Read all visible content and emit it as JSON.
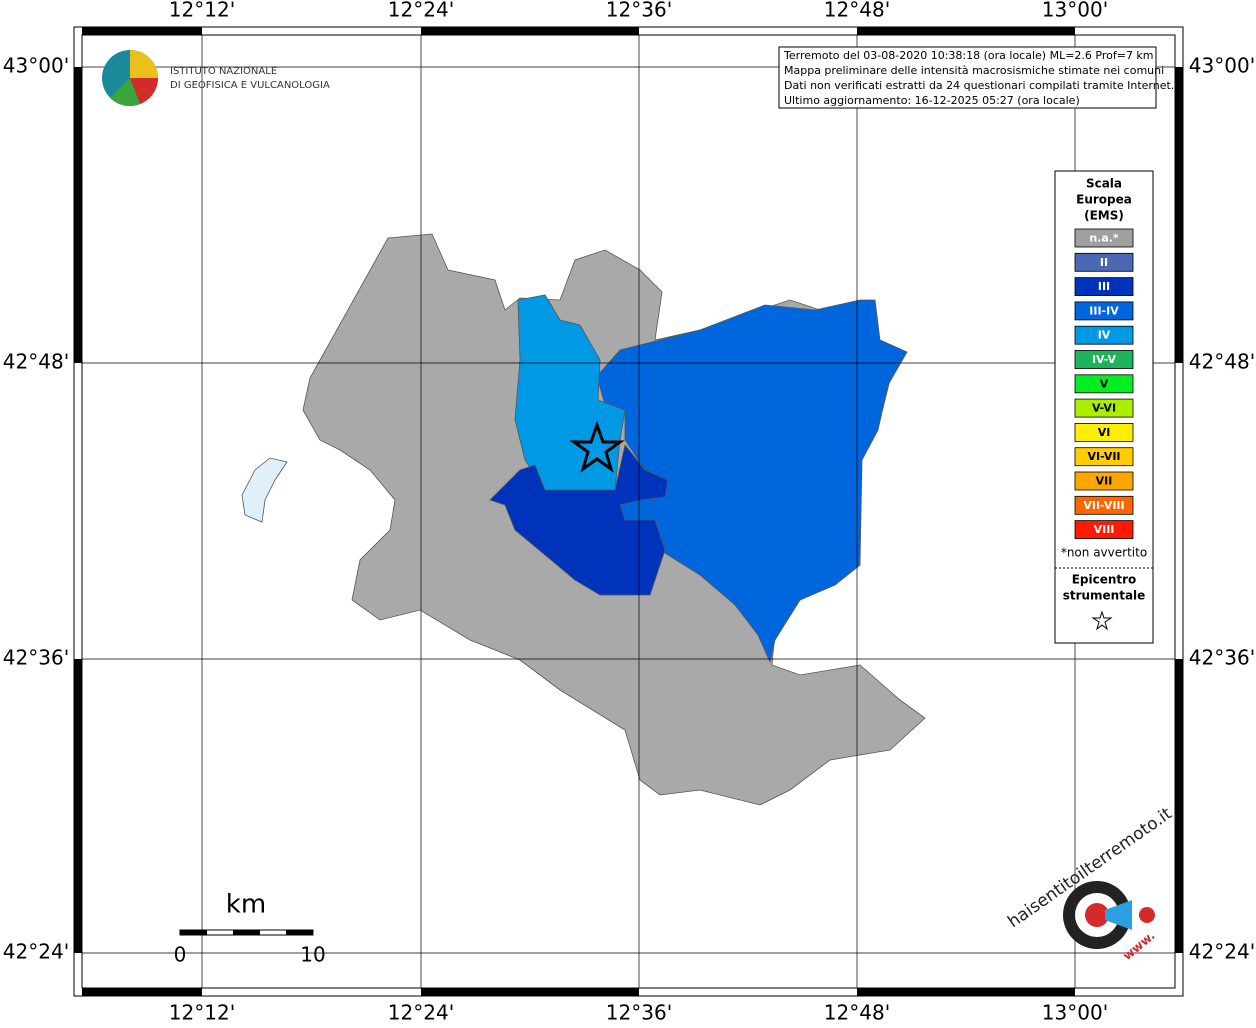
{
  "map": {
    "lon_labels": [
      "12°12'",
      "12°24'",
      "12°36'",
      "12°48'",
      "13°00'"
    ],
    "lat_labels": [
      "43°00'",
      "42°48'",
      "42°36'",
      "42°24'"
    ],
    "info_lines": [
      "Terremoto del 03-08-2020 10:38:18 (ora locale) ML=2.6 Prof=7 km",
      "Mappa preliminare delle intensità macrosismiche stimate nei comuni",
      "Dati non verificati estratti da 24 questionari compilati tramite Internet.",
      "Ultimo aggiornamento: 16-12-2025 05:27 (ora locale)"
    ],
    "logo_lines": [
      "ISTITUTO NAZIONALE",
      "DI GEOFISICA E VULCANOLOGIA"
    ],
    "legend": {
      "title_lines": [
        "Scala",
        "Europea",
        "(EMS)"
      ],
      "items": [
        {
          "label": "n.a.*",
          "color": "#a0a0a0"
        },
        {
          "label": "II",
          "color": "#4a68b4"
        },
        {
          "label": "III",
          "color": "#0033bb"
        },
        {
          "label": "III-IV",
          "color": "#0066dd"
        },
        {
          "label": "IV",
          "color": "#0099e6"
        },
        {
          "label": "IV-V",
          "color": "#1db35a"
        },
        {
          "label": "V",
          "color": "#00ee22"
        },
        {
          "label": "V-VI",
          "color": "#aaee00"
        },
        {
          "label": "VI",
          "color": "#ffee00"
        },
        {
          "label": "VI-VII",
          "color": "#ffcc00"
        },
        {
          "label": "VII",
          "color": "#ffa500"
        },
        {
          "label": "VII-VIII",
          "color": "#ff6600"
        },
        {
          "label": "VIII",
          "color": "#ff1a00"
        }
      ],
      "note": "*non avvertito",
      "epicenter_lines": [
        "Epicentro",
        "strumentale"
      ]
    },
    "scale": {
      "unit": "km",
      "labels": [
        "0",
        "10"
      ]
    },
    "site_logo": {
      "name": "haisentitoilterremoto.it",
      "www": "www."
    }
  }
}
